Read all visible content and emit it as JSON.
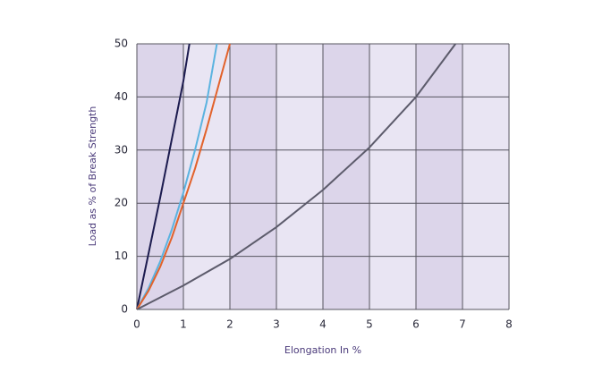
{
  "chart_data": {
    "type": "line",
    "xlabel": "Elongation In %",
    "ylabel": "Load as % of Break Strength",
    "xlim": [
      0,
      8
    ],
    "xticks": [
      0,
      1,
      2,
      3,
      4,
      5,
      6,
      7,
      8
    ],
    "ylim": [
      0,
      50
    ],
    "yticks": [
      0,
      10,
      20,
      30,
      40,
      50
    ],
    "grid": true,
    "series": [
      {
        "color": "#1c1b4f",
        "x": [
          0,
          0.5,
          1,
          1.13
        ],
        "values": [
          0,
          21,
          43,
          50
        ]
      },
      {
        "color": "#5bb3e0",
        "x": [
          0,
          0.25,
          0.5,
          0.75,
          1,
          1.25,
          1.5,
          1.72
        ],
        "values": [
          0,
          4,
          9,
          15,
          22,
          30,
          39,
          50
        ]
      },
      {
        "color": "#e2622b",
        "x": [
          0,
          0.25,
          0.5,
          0.75,
          1,
          1.25,
          1.5,
          1.75,
          2
        ],
        "values": [
          0,
          3.5,
          8,
          13.5,
          20,
          26.5,
          34,
          42,
          50
        ]
      },
      {
        "color": "#5c5b6b",
        "x": [
          0,
          1,
          2,
          3,
          4,
          5,
          6,
          6.85
        ],
        "values": [
          0,
          4.5,
          9.5,
          15.5,
          22.5,
          30.5,
          40,
          50
        ]
      }
    ]
  }
}
